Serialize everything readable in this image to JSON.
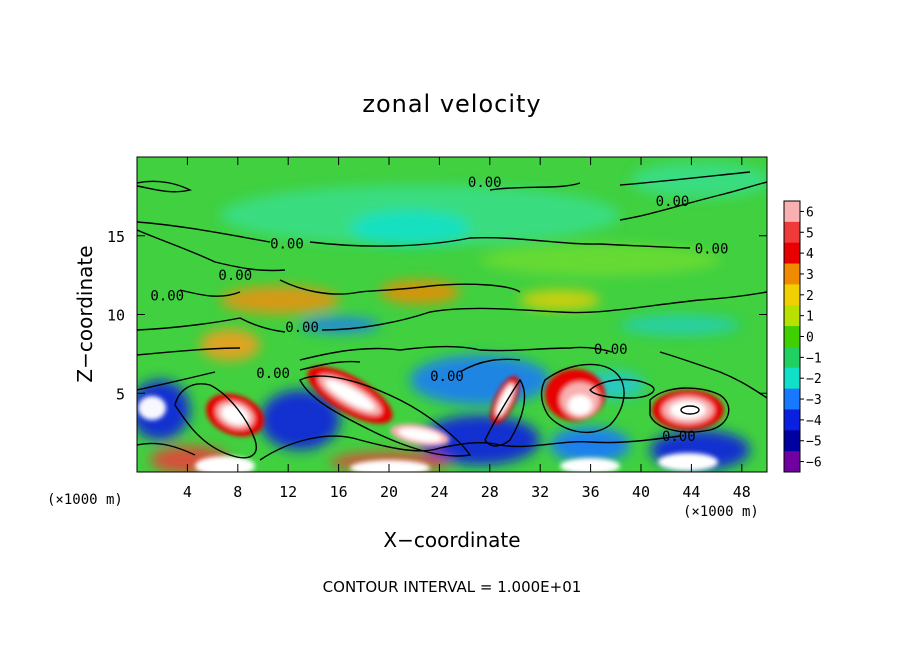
{
  "chart_data": {
    "type": "heatmap",
    "title": "zonal velocity",
    "xlabel": "X−coordinate",
    "ylabel": "Z−coordinate",
    "x_unit_left": "(×1000 m)",
    "x_unit_right": "(×1000 m)",
    "xlim": [
      0,
      50
    ],
    "ylim": [
      0,
      20
    ],
    "x_ticks": [
      4,
      8,
      12,
      16,
      20,
      24,
      28,
      32,
      36,
      40,
      44,
      48
    ],
    "x_tick_labels": [
      "4",
      "8",
      "12",
      "16",
      "20",
      "24",
      "28",
      "32",
      "36",
      "40",
      "44",
      "48"
    ],
    "y_ticks": [
      5,
      10,
      15
    ],
    "y_tick_labels": [
      "5",
      "10",
      "15"
    ],
    "colorbar": {
      "levels": [
        6,
        5,
        4,
        3,
        2,
        1,
        0,
        -1,
        -2,
        -3,
        -4,
        -5,
        -6
      ],
      "labels": [
        "6",
        "5",
        "4",
        "3",
        "2",
        "1",
        "0",
        "−1",
        "−2",
        "−3",
        "−4",
        "−5",
        "−6"
      ],
      "colors": [
        "#f8b0b0",
        "#f03a3a",
        "#e80000",
        "#f08a00",
        "#f0d000",
        "#b8e000",
        "#40d000",
        "#20d060",
        "#10e0c8",
        "#1878ff",
        "#0a20e0",
        "#0000a0",
        "#7000a0"
      ]
    },
    "contour_labels": [
      {
        "text": "0.00",
        "x": 27.6,
        "z": 18.4
      },
      {
        "text": "0.00",
        "x": 42.5,
        "z": 17.2
      },
      {
        "text": "0.00",
        "x": 11.9,
        "z": 14.5
      },
      {
        "text": "0.00",
        "x": 45.6,
        "z": 14.2
      },
      {
        "text": "0.00",
        "x": 7.8,
        "z": 12.5
      },
      {
        "text": "0.00",
        "x": 2.4,
        "z": 11.2
      },
      {
        "text": "0.00",
        "x": 13.1,
        "z": 9.2
      },
      {
        "text": "0.00",
        "x": 37.6,
        "z": 7.8
      },
      {
        "text": "0.00",
        "x": 10.8,
        "z": 6.3
      },
      {
        "text": "0.00",
        "x": 24.6,
        "z": 6.1
      },
      {
        "text": "0.00",
        "x": 43.0,
        "z": 2.3
      }
    ],
    "footer": "CONTOUR INTERVAL = 1.000E+01"
  }
}
